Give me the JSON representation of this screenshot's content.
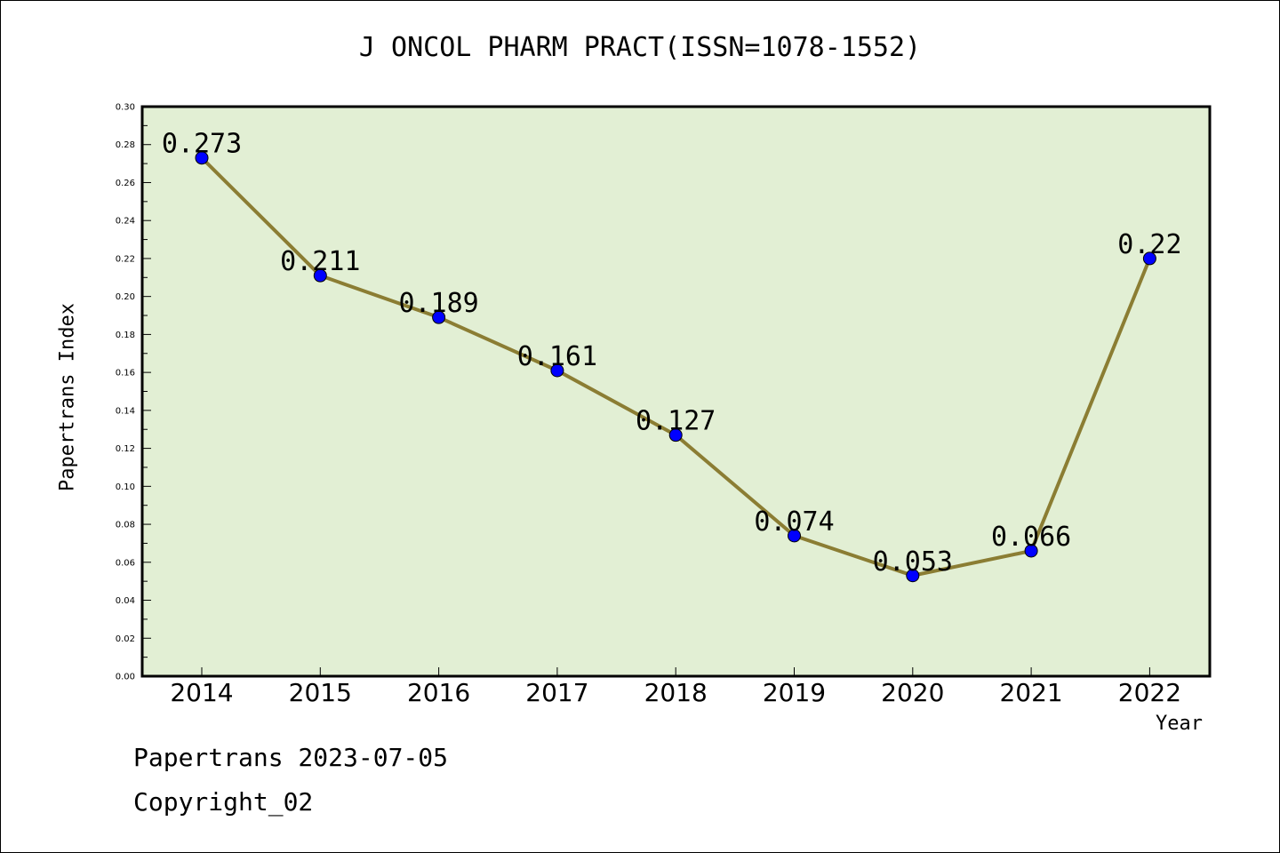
{
  "chart_data": {
    "type": "line",
    "title": "J ONCOL PHARM PRACT(ISSN=1078-1552)",
    "xlabel": "Year",
    "ylabel": "Papertrans Index",
    "categories": [
      "2014",
      "2015",
      "2016",
      "2017",
      "2018",
      "2019",
      "2020",
      "2021",
      "2022"
    ],
    "series": [
      {
        "values": [
          0.273,
          0.211,
          0.189,
          0.161,
          0.127,
          0.074,
          0.053,
          0.066,
          0.22
        ],
        "data_labels": [
          "0.273",
          "0.211",
          "0.189",
          "0.161",
          "0.127",
          "0.074",
          "0.053",
          "0.066",
          "0.22"
        ]
      }
    ],
    "ylim": [
      0,
      0.3
    ],
    "yticks": [
      "0.00",
      "0.02",
      "0.04",
      "0.06",
      "0.08",
      "0.10",
      "0.12",
      "0.14",
      "0.16",
      "0.18",
      "0.20",
      "0.22",
      "0.24",
      "0.26",
      "0.28",
      "0.30"
    ],
    "grid": false,
    "legend": "none",
    "colors": {
      "plot_background": "#e2efd4",
      "line": "#8b7d33",
      "marker": "#0000ff"
    }
  },
  "footer": {
    "line1": "Papertrans 2023-07-05",
    "line2": "Copyright_02"
  }
}
